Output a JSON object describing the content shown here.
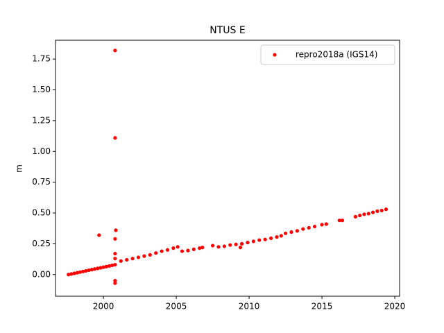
{
  "chart_data": {
    "type": "scatter",
    "title": "NTUS E",
    "ylabel": "m",
    "series": [
      {
        "name": "repro2018a (IGS14)",
        "color": "#ff0000",
        "x": [
          1997.6,
          1997.8,
          1998.0,
          1998.2,
          1998.4,
          1998.6,
          1998.8,
          1999.0,
          1999.2,
          1999.4,
          1999.6,
          1999.8,
          2000.0,
          2000.2,
          2000.4,
          2000.6,
          2000.8,
          2001.2,
          2001.6,
          2002.0,
          2002.4,
          2002.8,
          2003.2,
          2003.6,
          2004.0,
          2004.4,
          2004.8,
          2005.1,
          2005.4,
          2005.8,
          2006.2,
          2006.6,
          2006.8,
          2007.5,
          2007.9,
          2008.3,
          2008.7,
          2009.1,
          2009.5,
          2009.9,
          2010.3,
          2010.7,
          2011.1,
          2011.5,
          2011.9,
          2012.2,
          2012.5,
          2012.9,
          2013.3,
          2013.7,
          2014.1,
          2014.5,
          2015.0,
          2015.3,
          2016.2,
          2016.4,
          2017.3,
          2017.6,
          2017.9,
          2018.2,
          2018.5,
          2018.8,
          2019.1,
          2019.4,
          1999.7,
          2000.8,
          2000.8,
          2000.85,
          2000.8,
          2000.8,
          2000.8,
          2000.8,
          2000.8,
          2009.4
        ],
        "values": [
          0.0,
          0.005,
          0.01,
          0.015,
          0.02,
          0.025,
          0.03,
          0.035,
          0.04,
          0.045,
          0.05,
          0.055,
          0.06,
          0.065,
          0.07,
          0.075,
          0.08,
          0.11,
          0.12,
          0.13,
          0.14,
          0.15,
          0.16,
          0.175,
          0.19,
          0.2,
          0.215,
          0.225,
          0.19,
          0.195,
          0.205,
          0.215,
          0.22,
          0.235,
          0.225,
          0.23,
          0.24,
          0.245,
          0.25,
          0.26,
          0.27,
          0.28,
          0.285,
          0.295,
          0.305,
          0.315,
          0.335,
          0.345,
          0.355,
          0.37,
          0.38,
          0.39,
          0.405,
          0.41,
          0.44,
          0.44,
          0.47,
          0.48,
          0.49,
          0.495,
          0.505,
          0.515,
          0.52,
          0.53,
          0.32,
          1.82,
          1.11,
          0.36,
          0.29,
          0.17,
          -0.05,
          -0.07,
          0.13,
          0.22
        ]
      }
    ],
    "xlim": [
      1996.71,
      2020.33
    ],
    "xticks": [
      2000,
      2005,
      2010,
      2015,
      2020
    ],
    "ylim": [
      -0.176,
      1.903
    ],
    "yticks": [
      {
        "value": 0,
        "label": "0.00"
      },
      0.25,
      {
        "value": 0.5,
        "label": "0.50"
      },
      0.75,
      {
        "value": 1,
        "label": "1.00"
      },
      1.25,
      {
        "value": 1.5,
        "label": "1.50"
      },
      1.75
    ],
    "legend": "upper right",
    "grid": false
  }
}
